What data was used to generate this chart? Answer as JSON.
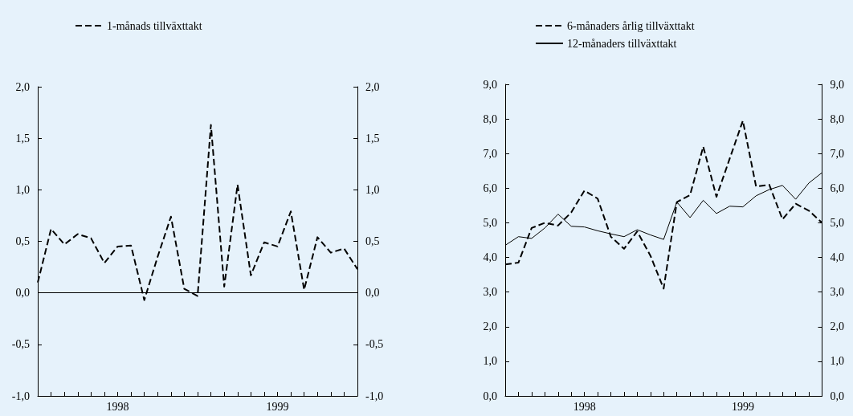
{
  "chart_data": [
    {
      "type": "line",
      "categories": [
        null,
        null,
        null,
        null,
        null,
        null,
        "1998",
        null,
        null,
        null,
        null,
        null,
        null,
        null,
        null,
        null,
        null,
        null,
        "1999",
        null,
        null,
        null,
        null,
        null,
        null
      ],
      "series": [
        {
          "name": "1-månads tillväxttakt",
          "color": "#000000",
          "line_style": "dashed",
          "values": [
            0.1,
            0.62,
            0.47,
            0.57,
            0.53,
            0.29,
            0.45,
            0.46,
            -0.07,
            0.35,
            0.74,
            0.04,
            -0.03,
            1.63,
            0.06,
            1.05,
            0.17,
            0.49,
            0.45,
            0.79,
            0.03,
            0.54,
            0.39,
            0.43,
            0.23
          ]
        }
      ],
      "ylim": [
        -1,
        2
      ],
      "yticks": [
        {
          "value": -1,
          "label": "-1,0"
        },
        {
          "value": -0.5,
          "label": "-0,5"
        },
        {
          "value": 0,
          "label": "0,0"
        },
        {
          "value": 0.5,
          "label": "0,5"
        },
        {
          "value": 1,
          "label": "1,0"
        },
        {
          "value": 1.5,
          "label": "1,5"
        },
        {
          "value": 2,
          "label": "2,0"
        }
      ],
      "y2lim": [
        -1,
        2
      ],
      "y2ticks": [
        {
          "value": -1,
          "label": "-1,0"
        },
        {
          "value": -0.5,
          "label": "-0,5"
        },
        {
          "value": 0,
          "label": "0,0"
        },
        {
          "value": 0.5,
          "label": "0,5"
        },
        {
          "value": 1,
          "label": "1,0"
        },
        {
          "value": 1.5,
          "label": "1,5"
        },
        {
          "value": 2,
          "label": "2,0"
        }
      ],
      "ref_lines": [
        {
          "axis": "y",
          "value": 0,
          "color": "#000000"
        }
      ],
      "grid": false,
      "legend": "top left",
      "marker": "none"
    },
    {
      "type": "line",
      "categories": [
        null,
        null,
        null,
        null,
        null,
        null,
        "1998",
        null,
        null,
        null,
        null,
        null,
        null,
        null,
        null,
        null,
        null,
        null,
        "1999",
        null,
        null,
        null,
        null,
        null,
        null
      ],
      "series": [
        {
          "name": "6-månaders årlig tillväxttakt",
          "color": "#000000",
          "line_style": "dashed",
          "values": [
            3.8,
            3.85,
            4.85,
            5.0,
            4.92,
            5.3,
            5.93,
            5.7,
            4.6,
            4.25,
            4.75,
            4.05,
            3.1,
            5.6,
            5.8,
            7.2,
            5.75,
            6.85,
            7.95,
            6.05,
            6.1,
            5.1,
            5.55,
            5.35,
            5.0
          ]
        },
        {
          "name": "12-månaders tillväxttakt",
          "color": "#000000",
          "line_style": "solid",
          "values": [
            4.35,
            4.6,
            4.55,
            4.85,
            5.25,
            4.9,
            4.88,
            4.77,
            4.68,
            4.6,
            4.8,
            4.65,
            4.52,
            5.6,
            5.15,
            5.65,
            5.27,
            5.48,
            5.46,
            5.78,
            5.96,
            6.08,
            5.68,
            6.15,
            6.45
          ]
        }
      ],
      "ylim": [
        0,
        9
      ],
      "yticks": [
        {
          "value": 0,
          "label": "0,0"
        },
        {
          "value": 1,
          "label": "1,0"
        },
        {
          "value": 2,
          "label": "2,0"
        },
        {
          "value": 3,
          "label": "3,0"
        },
        {
          "value": 4,
          "label": "4,0"
        },
        {
          "value": 5,
          "label": "5,0"
        },
        {
          "value": 6,
          "label": "6,0"
        },
        {
          "value": 7,
          "label": "7,0"
        },
        {
          "value": 8,
          "label": "8,0"
        },
        {
          "value": 9,
          "label": "9,0"
        }
      ],
      "y2lim": [
        0,
        9
      ],
      "y2ticks": [
        {
          "value": 0,
          "label": "0,0"
        },
        {
          "value": 1,
          "label": "1,0"
        },
        {
          "value": 2,
          "label": "2,0"
        },
        {
          "value": 3,
          "label": "3,0"
        },
        {
          "value": 4,
          "label": "4,0"
        },
        {
          "value": 5,
          "label": "5,0"
        },
        {
          "value": 6,
          "label": "6,0"
        },
        {
          "value": 7,
          "label": "7,0"
        },
        {
          "value": 8,
          "label": "8,0"
        },
        {
          "value": 9,
          "label": "9,0"
        }
      ],
      "grid": false,
      "legend": "top left",
      "marker": "none"
    }
  ]
}
